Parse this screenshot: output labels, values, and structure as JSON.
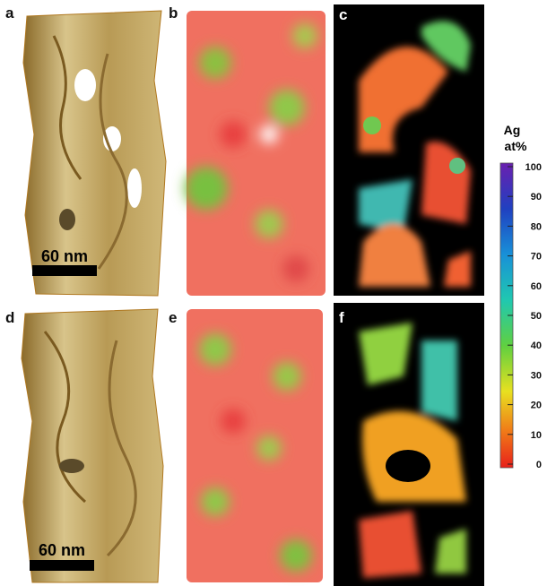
{
  "panels": [
    {
      "label": "a"
    },
    {
      "label": "b"
    },
    {
      "label": "c"
    },
    {
      "label": "d"
    },
    {
      "label": "e"
    },
    {
      "label": "f"
    }
  ],
  "scale_bars": [
    {
      "label": "60 nm"
    },
    {
      "label": "60 nm"
    }
  ],
  "colorbar": {
    "title": [
      "Ag",
      "at%"
    ],
    "ticks": [
      0,
      10,
      20,
      30,
      40,
      50,
      60,
      70,
      80,
      90,
      100
    ]
  }
}
